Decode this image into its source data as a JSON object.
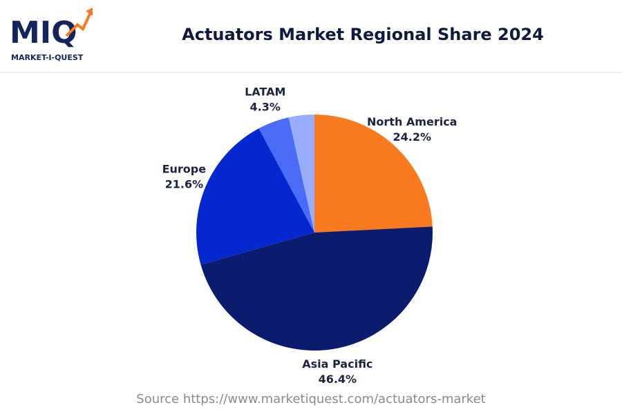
{
  "logo": {
    "name": "MIQ",
    "tagline": "MARKET-I-QUEST"
  },
  "chart_data": {
    "type": "pie",
    "title": "Actuators Market Regional Share 2024",
    "categories": [
      "North America",
      "Asia Pacific",
      "Europe",
      "LATAM",
      null
    ],
    "values": [
      24.2,
      46.4,
      21.6,
      4.3,
      3.5
    ],
    "value_labels": [
      "24.2%",
      "46.4%",
      "21.6%",
      "4.3%",
      null
    ],
    "colors": [
      "#f97a1f",
      "#0b1c6e",
      "#0527d0",
      "#4a6bf5",
      "#9aadfd"
    ],
    "source": "Source https://www.marketiquest.com/actuators-market"
  }
}
